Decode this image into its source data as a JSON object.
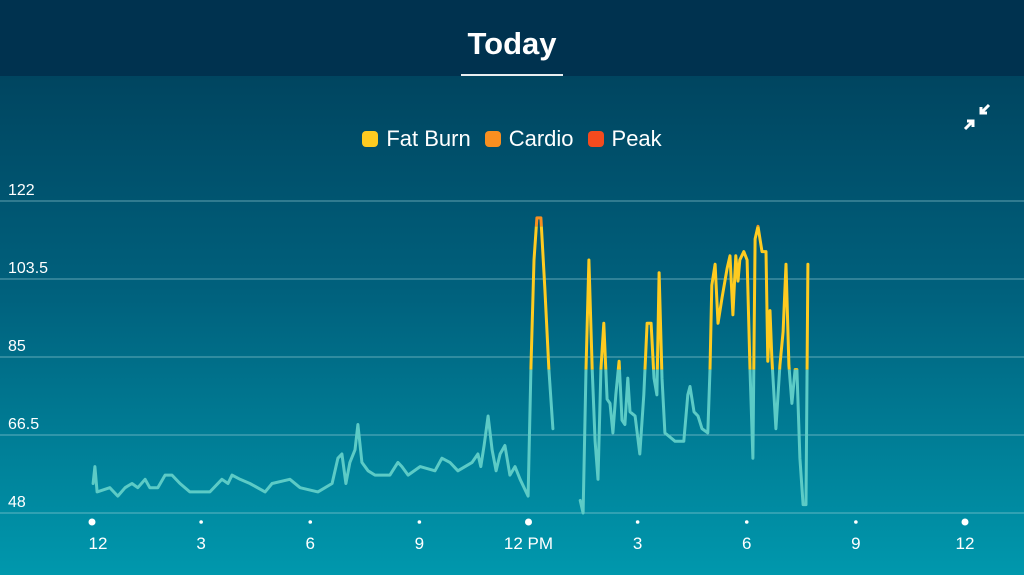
{
  "header": {
    "tab_label": "Today"
  },
  "controls": {
    "collapse_icon": "collapse-arrows-icon"
  },
  "colors": {
    "base": "#5ccbc6",
    "fat_burn": "#fecb20",
    "cardio": "#f98f20",
    "peak": "#f44b1e",
    "grid": "#9fd3db"
  },
  "chart_data": {
    "type": "line",
    "title": "",
    "xlabel": "",
    "ylabel": "",
    "legend": {
      "placement": "top-center",
      "entries": [
        {
          "name": "Fat Burn",
          "color": "#fecb20"
        },
        {
          "name": "Cardio",
          "color": "#f98f20"
        },
        {
          "name": "Peak",
          "color": "#f44b1e"
        }
      ]
    },
    "zone_thresholds_bpm": {
      "fat_burn": 82,
      "cardio": 116
    },
    "ylim": [
      48,
      122
    ],
    "yticks": [
      48,
      66.5,
      85,
      103.5,
      122
    ],
    "ytick_labels": [
      "48",
      "66.5",
      "85",
      "103.5",
      "122"
    ],
    "xlim_hours": [
      0,
      24
    ],
    "xticks_hours": [
      0,
      3,
      6,
      9,
      12,
      15,
      18,
      21,
      24
    ],
    "xtick_labels": [
      "12",
      "3",
      "6",
      "9",
      "12 PM",
      "3",
      "6",
      "9",
      "12"
    ],
    "grid": true,
    "series": [
      {
        "points_hour_bpm": [
          [
            0.03,
            55
          ],
          [
            0.08,
            59
          ],
          [
            0.14,
            53
          ],
          [
            0.49,
            54
          ],
          [
            0.71,
            52
          ],
          [
            0.91,
            54
          ],
          [
            1.1,
            55
          ],
          [
            1.26,
            54
          ],
          [
            1.46,
            56
          ],
          [
            1.59,
            54
          ],
          [
            1.81,
            54
          ],
          [
            2.01,
            57
          ],
          [
            2.2,
            57
          ],
          [
            2.42,
            55
          ],
          [
            2.69,
            53
          ],
          [
            3.24,
            53
          ],
          [
            3.57,
            56
          ],
          [
            3.74,
            55
          ],
          [
            3.85,
            57
          ],
          [
            4.07,
            56
          ],
          [
            4.34,
            55
          ],
          [
            4.76,
            53
          ],
          [
            4.95,
            55
          ],
          [
            5.44,
            56
          ],
          [
            5.72,
            54
          ],
          [
            6.21,
            53
          ],
          [
            6.6,
            55
          ],
          [
            6.76,
            61
          ],
          [
            6.87,
            62
          ],
          [
            6.98,
            55
          ],
          [
            7.09,
            60
          ],
          [
            7.23,
            63
          ],
          [
            7.31,
            69
          ],
          [
            7.42,
            60
          ],
          [
            7.59,
            58
          ],
          [
            7.78,
            57
          ],
          [
            8.19,
            57
          ],
          [
            8.41,
            60
          ],
          [
            8.52,
            59
          ],
          [
            8.69,
            57
          ],
          [
            9.02,
            59
          ],
          [
            9.43,
            58
          ],
          [
            9.62,
            61
          ],
          [
            9.84,
            60
          ],
          [
            10.06,
            58
          ],
          [
            10.45,
            60
          ],
          [
            10.61,
            62
          ],
          [
            10.69,
            59
          ],
          [
            10.78,
            64
          ],
          [
            10.89,
            71
          ],
          [
            11.0,
            63
          ],
          [
            11.11,
            58
          ],
          [
            11.22,
            62
          ],
          [
            11.35,
            64
          ],
          [
            11.49,
            57
          ],
          [
            11.63,
            59
          ],
          [
            11.77,
            56
          ],
          [
            11.99,
            52
          ],
          [
            12.07,
            83
          ],
          [
            12.15,
            108
          ],
          [
            12.23,
            118
          ],
          [
            12.34,
            118
          ],
          [
            12.45,
            101
          ],
          [
            12.56,
            82
          ],
          [
            12.67,
            68
          ],
          null,
          [
            13.42,
            51
          ],
          [
            13.5,
            48
          ],
          [
            13.58,
            82
          ],
          [
            13.66,
            108
          ],
          [
            13.75,
            82
          ],
          [
            13.83,
            65
          ],
          [
            13.91,
            56
          ],
          [
            13.99,
            82
          ],
          [
            14.07,
            93
          ],
          [
            14.16,
            75
          ],
          [
            14.24,
            74
          ],
          [
            14.32,
            67
          ],
          [
            14.4,
            76
          ],
          [
            14.49,
            84
          ],
          [
            14.57,
            70
          ],
          [
            14.65,
            69
          ],
          [
            14.73,
            80
          ],
          [
            14.79,
            72
          ],
          [
            14.93,
            71
          ],
          [
            15.06,
            62
          ],
          [
            15.17,
            76
          ],
          [
            15.26,
            93
          ],
          [
            15.37,
            93
          ],
          [
            15.45,
            80
          ],
          [
            15.53,
            76
          ],
          [
            15.59,
            105
          ],
          [
            15.67,
            80
          ],
          [
            15.75,
            67
          ],
          [
            16.03,
            65
          ],
          [
            16.27,
            65
          ],
          [
            16.38,
            76
          ],
          [
            16.44,
            78
          ],
          [
            16.55,
            72
          ],
          [
            16.66,
            71
          ],
          [
            16.77,
            68
          ],
          [
            16.93,
            67
          ],
          [
            16.99,
            82
          ],
          [
            17.04,
            102
          ],
          [
            17.13,
            107
          ],
          [
            17.21,
            93
          ],
          [
            17.32,
            99
          ],
          [
            17.46,
            106
          ],
          [
            17.54,
            109
          ],
          [
            17.62,
            95
          ],
          [
            17.7,
            109
          ],
          [
            17.76,
            103
          ],
          [
            17.81,
            108
          ],
          [
            17.92,
            110
          ],
          [
            18.01,
            108
          ],
          [
            18.09,
            82
          ],
          [
            18.17,
            61
          ],
          [
            18.23,
            113
          ],
          [
            18.31,
            116
          ],
          [
            18.42,
            110
          ],
          [
            18.53,
            110
          ],
          [
            18.58,
            84
          ],
          [
            18.64,
            96
          ],
          [
            18.69,
            85
          ],
          [
            18.8,
            68
          ],
          [
            18.91,
            83
          ],
          [
            19.0,
            91
          ],
          [
            19.08,
            107
          ],
          [
            19.16,
            83
          ],
          [
            19.24,
            74
          ],
          [
            19.33,
            82
          ],
          [
            19.38,
            82
          ],
          [
            19.46,
            61
          ],
          [
            19.55,
            50
          ],
          [
            19.63,
            50
          ],
          [
            19.68,
            107
          ]
        ]
      }
    ]
  }
}
